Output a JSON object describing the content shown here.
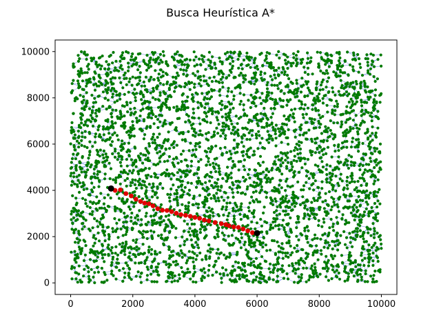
{
  "chart_data": {
    "type": "scatter",
    "title": "Busca Heurística A*",
    "xlabel": "",
    "ylabel": "",
    "xlim": [
      -500,
      10500
    ],
    "ylim": [
      -500,
      10500
    ],
    "x_ticks": [
      0,
      2000,
      4000,
      6000,
      8000,
      10000
    ],
    "y_ticks": [
      0,
      2000,
      4000,
      6000,
      8000,
      10000
    ],
    "x_tick_labels": [
      "0",
      "2000",
      "4000",
      "6000",
      "8000",
      "10000"
    ],
    "y_tick_labels": [
      "0",
      "2000",
      "4000",
      "6000",
      "8000",
      "10000"
    ],
    "grid": false,
    "colors": {
      "nodes": "#007a00",
      "edges": "#3b5bdb",
      "path": "#e00000",
      "endpoints": "#000000"
    },
    "nodes": {
      "description_count": 4000,
      "x_range": [
        0,
        10000
      ],
      "y_range": [
        0,
        10000
      ]
    },
    "series": [
      {
        "color": "#e00000",
        "points": [
          {
            "x": 1430,
            "y": 4000
          },
          {
            "x": 1600,
            "y": 4020
          },
          {
            "x": 1780,
            "y": 3860
          },
          {
            "x": 1950,
            "y": 3760
          },
          {
            "x": 2100,
            "y": 3620
          },
          {
            "x": 2250,
            "y": 3520
          },
          {
            "x": 2380,
            "y": 3450
          },
          {
            "x": 2520,
            "y": 3420
          },
          {
            "x": 2650,
            "y": 3330
          },
          {
            "x": 2800,
            "y": 3210
          },
          {
            "x": 2950,
            "y": 3140
          },
          {
            "x": 3100,
            "y": 3130
          },
          {
            "x": 3250,
            "y": 3080
          },
          {
            "x": 3400,
            "y": 3010
          },
          {
            "x": 3550,
            "y": 2950
          },
          {
            "x": 3700,
            "y": 2920
          },
          {
            "x": 3850,
            "y": 2880
          },
          {
            "x": 4000,
            "y": 2830
          },
          {
            "x": 4150,
            "y": 2790
          },
          {
            "x": 4300,
            "y": 2720
          },
          {
            "x": 4450,
            "y": 2680
          },
          {
            "x": 4650,
            "y": 2610
          },
          {
            "x": 4850,
            "y": 2560
          },
          {
            "x": 5000,
            "y": 2520
          },
          {
            "x": 5100,
            "y": 2470
          },
          {
            "x": 5250,
            "y": 2420
          },
          {
            "x": 5400,
            "y": 2400
          },
          {
            "x": 5550,
            "y": 2330
          },
          {
            "x": 5700,
            "y": 2250
          },
          {
            "x": 5850,
            "y": 2170
          }
        ]
      }
    ],
    "endpoints": [
      {
        "x": 1300,
        "y": 4080
      },
      {
        "x": 6000,
        "y": 2150
      }
    ]
  }
}
